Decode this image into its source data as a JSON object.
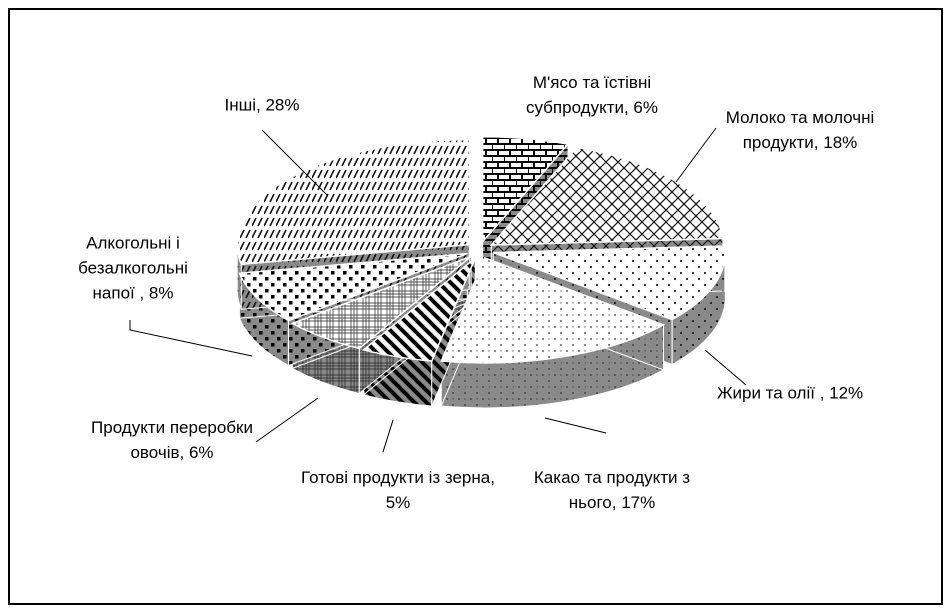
{
  "chart_data": {
    "type": "pie3d",
    "value_labels": [
      "М'ясо та їстівні субпродукти, 6%",
      "Молоко та молочні продукти, 18%",
      "Жири та олії , 12%",
      "Какао та продукти з нього, 17%",
      "Готові продукти із зерна, 5%",
      "Продукти переробки овочів, 6%",
      "Алкогольні і безалкогольні напої , 8%",
      "Інші, 28%"
    ],
    "values": [
      6,
      18,
      12,
      17,
      5,
      6,
      8,
      28
    ],
    "colors": [
      "#000000",
      "#111111",
      "#222222",
      "#333333",
      "#000000",
      "#222222",
      "#000000",
      "#111111"
    ]
  }
}
